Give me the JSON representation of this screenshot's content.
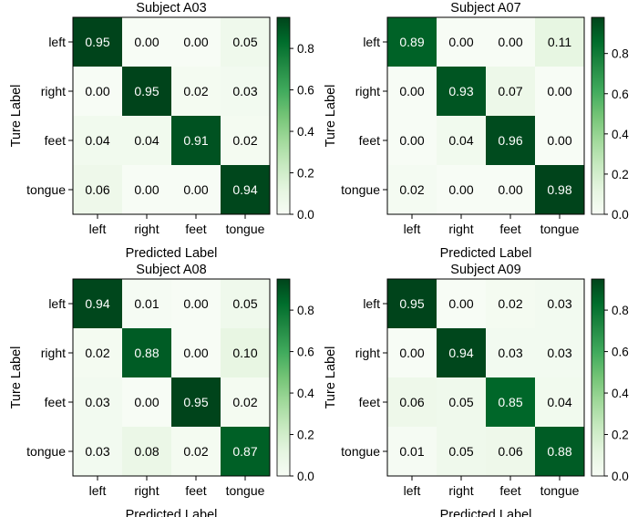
{
  "chart_data": [
    {
      "type": "heatmap",
      "title": "Subject A03",
      "xlabel": "Predicted Label",
      "ylabel": "Ture Label",
      "x_categories": [
        "left",
        "right",
        "feet",
        "tongue"
      ],
      "y_categories": [
        "left",
        "right",
        "feet",
        "tongue"
      ],
      "values": [
        [
          0.95,
          0.0,
          0.0,
          0.05
        ],
        [
          0.0,
          0.95,
          0.02,
          0.03
        ],
        [
          0.04,
          0.04,
          0.91,
          0.02
        ],
        [
          0.06,
          0.0,
          0.0,
          0.94
        ]
      ],
      "value_labels": [
        [
          "0.95",
          "0.00",
          "0.00",
          "0.05"
        ],
        [
          "0.00",
          "0.95",
          "0.02",
          "0.03"
        ],
        [
          "0.04",
          "0.04",
          "0.91",
          "0.02"
        ],
        [
          "0.06",
          "0.00",
          "0.00",
          "0.94"
        ]
      ],
      "colorbar": {
        "ticks": [
          "0.0",
          "0.2",
          "0.4",
          "0.6",
          "0.8"
        ],
        "range": [
          0,
          0.95
        ],
        "colormap": "Greens"
      }
    },
    {
      "type": "heatmap",
      "title": "Subject A07",
      "xlabel": "Predicted Label",
      "ylabel": "Ture Label",
      "x_categories": [
        "left",
        "right",
        "feet",
        "tongue"
      ],
      "y_categories": [
        "left",
        "right",
        "feet",
        "tongue"
      ],
      "values": [
        [
          0.89,
          0.0,
          0.0,
          0.11
        ],
        [
          0.0,
          0.93,
          0.07,
          0.0
        ],
        [
          0.0,
          0.04,
          0.96,
          0.0
        ],
        [
          0.02,
          0.0,
          0.0,
          0.98
        ]
      ],
      "value_labels": [
        [
          "0.89",
          "0.00",
          "0.00",
          "0.11"
        ],
        [
          "0.00",
          "0.93",
          "0.07",
          "0.00"
        ],
        [
          "0.00",
          "0.04",
          "0.96",
          "0.00"
        ],
        [
          "0.02",
          "0.00",
          "0.00",
          "0.98"
        ]
      ],
      "colorbar": {
        "ticks": [
          "0.0",
          "0.2",
          "0.4",
          "0.6",
          "0.8"
        ],
        "range": [
          0,
          0.98
        ],
        "colormap": "Greens"
      }
    },
    {
      "type": "heatmap",
      "title": "Subject A08",
      "xlabel": "Predicted Label",
      "ylabel": "Ture Label",
      "x_categories": [
        "left",
        "right",
        "feet",
        "tongue"
      ],
      "y_categories": [
        "left",
        "right",
        "feet",
        "tongue"
      ],
      "values": [
        [
          0.94,
          0.01,
          0.0,
          0.05
        ],
        [
          0.02,
          0.88,
          0.0,
          0.1
        ],
        [
          0.03,
          0.0,
          0.95,
          0.02
        ],
        [
          0.03,
          0.08,
          0.02,
          0.87
        ]
      ],
      "value_labels": [
        [
          "0.94",
          "0.01",
          "0.00",
          "0.05"
        ],
        [
          "0.02",
          "0.88",
          "0.00",
          "0.10"
        ],
        [
          "0.03",
          "0.00",
          "0.95",
          "0.02"
        ],
        [
          "0.03",
          "0.08",
          "0.02",
          "0.87"
        ]
      ],
      "colorbar": {
        "ticks": [
          "0.0",
          "0.2",
          "0.4",
          "0.6",
          "0.8"
        ],
        "range": [
          0,
          0.95
        ],
        "colormap": "Greens"
      }
    },
    {
      "type": "heatmap",
      "title": "Subject A09",
      "xlabel": "Predicted Label",
      "ylabel": "Ture Label",
      "x_categories": [
        "left",
        "right",
        "feet",
        "tongue"
      ],
      "y_categories": [
        "left",
        "right",
        "feet",
        "tongue"
      ],
      "values": [
        [
          0.95,
          0.0,
          0.02,
          0.03
        ],
        [
          0.0,
          0.94,
          0.03,
          0.03
        ],
        [
          0.06,
          0.05,
          0.85,
          0.04
        ],
        [
          0.01,
          0.05,
          0.06,
          0.88
        ]
      ],
      "value_labels": [
        [
          "0.95",
          "0.00",
          "0.02",
          "0.03"
        ],
        [
          "0.00",
          "0.94",
          "0.03",
          "0.03"
        ],
        [
          "0.06",
          "0.05",
          "0.85",
          "0.04"
        ],
        [
          "0.01",
          "0.05",
          "0.06",
          "0.88"
        ]
      ],
      "colorbar": {
        "ticks": [
          "0.0",
          "0.2",
          "0.4",
          "0.6",
          "0.8"
        ],
        "range": [
          0,
          0.95
        ],
        "colormap": "Greens"
      }
    }
  ]
}
